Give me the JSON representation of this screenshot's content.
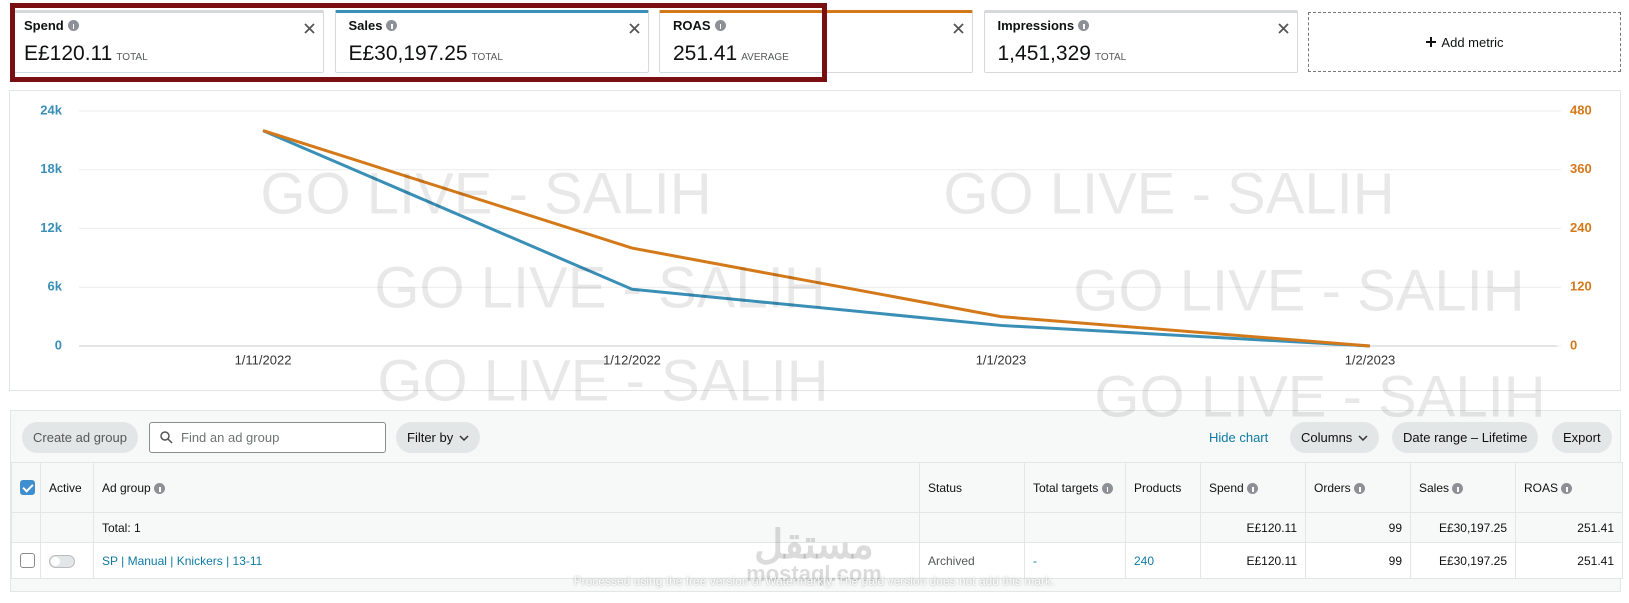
{
  "metrics": [
    {
      "name": "Spend",
      "value": "E£120.11",
      "aggregate": "TOTAL"
    },
    {
      "name": "Sales",
      "value": "E£30,197.25",
      "aggregate": "TOTAL",
      "color": "#3a8fb7"
    },
    {
      "name": "ROAS",
      "value": "251.41",
      "aggregate": "AVERAGE",
      "color": "#d4791a"
    },
    {
      "name": "Impressions",
      "value": "1,451,329",
      "aggregate": "TOTAL"
    }
  ],
  "add_metric": "Add metric",
  "chart_data": {
    "type": "line",
    "x": [
      "1/11/2022",
      "1/12/2022",
      "1/1/2023",
      "1/2/2023"
    ],
    "series": [
      {
        "name": "Sales",
        "color": "#3a8fb7",
        "values": [
          22000,
          5800,
          2100,
          0
        ]
      },
      {
        "name": "ROAS",
        "color": "#d4791a",
        "axis": "y2",
        "values": [
          440,
          200,
          60,
          0
        ]
      }
    ],
    "ylim": [
      0,
      24000
    ],
    "yticks": [
      0,
      {
        "value": 6000,
        "label": "6k"
      },
      {
        "value": 12000,
        "label": "12k"
      },
      {
        "value": 18000,
        "label": "18k"
      },
      {
        "value": 24000,
        "label": "24k"
      }
    ],
    "y2lim": [
      0,
      480
    ],
    "y2ticks": [
      0,
      120,
      240,
      360,
      480
    ],
    "grid": true
  },
  "toolbar": {
    "create": "Create ad group",
    "search_placeholder": "Find an ad group",
    "filter": "Filter by",
    "hide_chart": "Hide chart",
    "columns": "Columns",
    "date_range": "Date range – Lifetime",
    "export": "Export"
  },
  "table": {
    "headers": [
      "Active",
      "Ad group",
      "Status",
      "Total targets",
      "Products",
      "Spend",
      "Orders",
      "Sales",
      "ROAS"
    ],
    "total": {
      "label": "Total: 1",
      "spend": "E£120.11",
      "orders": "99",
      "sales": "E£30,197.25",
      "roas": "251.41"
    },
    "rows": [
      {
        "ad_group": "SP | Manual | Knickers | 13-11",
        "status": "Archived",
        "total_targets": "-",
        "products": "240",
        "spend": "E£120.11",
        "orders": "99",
        "sales": "E£30,197.25",
        "roas": "251.41"
      }
    ]
  },
  "watermarks": {
    "text": "GO LIVE - SALIH",
    "logo": "مستقل",
    "site": "mostaql.com",
    "notice": "Processed using the free version of Watermarkly. The paid version does not add this mark."
  }
}
